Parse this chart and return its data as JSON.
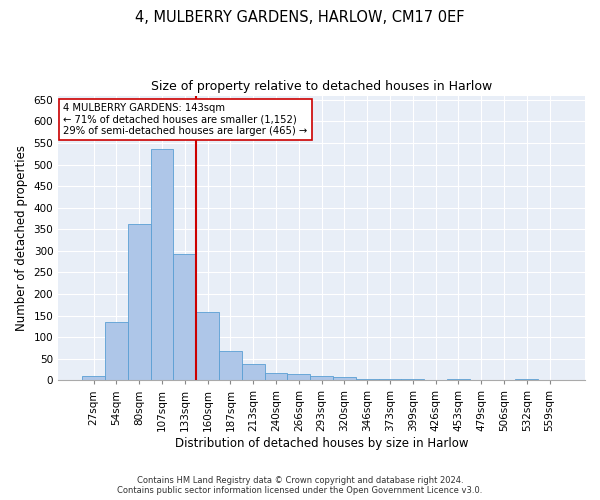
{
  "title": "4, MULBERRY GARDENS, HARLOW, CM17 0EF",
  "subtitle": "Size of property relative to detached houses in Harlow",
  "xlabel": "Distribution of detached houses by size in Harlow",
  "ylabel": "Number of detached properties",
  "categories": [
    "27sqm",
    "54sqm",
    "80sqm",
    "107sqm",
    "133sqm",
    "160sqm",
    "187sqm",
    "213sqm",
    "240sqm",
    "266sqm",
    "293sqm",
    "320sqm",
    "346sqm",
    "373sqm",
    "399sqm",
    "426sqm",
    "453sqm",
    "479sqm",
    "506sqm",
    "532sqm",
    "559sqm"
  ],
  "values": [
    10,
    135,
    363,
    537,
    293,
    158,
    67,
    38,
    18,
    15,
    10,
    7,
    3,
    3,
    3,
    0,
    3,
    0,
    0,
    3,
    0
  ],
  "bar_color": "#aec6e8",
  "bar_edge_color": "#5a9fd4",
  "vline_color": "#cc0000",
  "annotation_text": "4 MULBERRY GARDENS: 143sqm\n← 71% of detached houses are smaller (1,152)\n29% of semi-detached houses are larger (465) →",
  "annotation_box_color": "#ffffff",
  "annotation_box_edge_color": "#cc0000",
  "ylim": [
    0,
    660
  ],
  "yticks": [
    0,
    50,
    100,
    150,
    200,
    250,
    300,
    350,
    400,
    450,
    500,
    550,
    600,
    650
  ],
  "background_color": "#e8eef7",
  "grid_color": "#ffffff",
  "footer_line1": "Contains HM Land Registry data © Crown copyright and database right 2024.",
  "footer_line2": "Contains public sector information licensed under the Open Government Licence v3.0.",
  "title_fontsize": 10.5,
  "subtitle_fontsize": 9,
  "xlabel_fontsize": 8.5,
  "ylabel_fontsize": 8.5,
  "tick_fontsize": 7.5,
  "footer_fontsize": 6.0
}
